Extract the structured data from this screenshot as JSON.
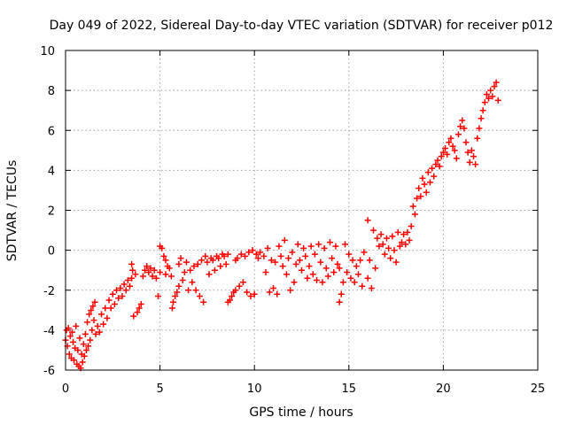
{
  "chart_data": {
    "type": "scatter",
    "title": "Day 049 of 2022, Sidereal Day-to-day VTEC variation (SDTVAR) for receiver p012",
    "xlabel": "GPS time / hours",
    "ylabel": "SDTVAR / TECUs",
    "xlim": [
      0,
      25
    ],
    "ylim": [
      -6,
      10
    ],
    "xticks": [
      0,
      5,
      10,
      15,
      20,
      25
    ],
    "yticks": [
      -6,
      -4,
      -2,
      0,
      2,
      4,
      6,
      8,
      10
    ],
    "xtick_labels": [
      "0",
      "5",
      "10",
      "15",
      "20",
      "25"
    ],
    "ytick_labels": [
      "-6",
      "-4",
      "-2",
      "0",
      "2",
      "4",
      "6",
      "8",
      "10"
    ],
    "grid": true,
    "marker": "+",
    "color": "#ff0000",
    "series": [
      {
        "name": "SDTVAR",
        "points": [
          [
            0.0,
            -4.5
          ],
          [
            0.05,
            -4.0
          ],
          [
            0.1,
            -4.8
          ],
          [
            0.15,
            -3.9
          ],
          [
            0.2,
            -5.2
          ],
          [
            0.25,
            -4.3
          ],
          [
            0.3,
            -5.4
          ],
          [
            0.35,
            -4.1
          ],
          [
            0.4,
            -4.6
          ],
          [
            0.45,
            -5.5
          ],
          [
            0.5,
            -4.9
          ],
          [
            0.55,
            -3.8
          ],
          [
            0.6,
            -5.7
          ],
          [
            0.65,
            -5.0
          ],
          [
            0.7,
            -5.8
          ],
          [
            0.75,
            -4.4
          ],
          [
            0.8,
            -5.9
          ],
          [
            0.85,
            -5.2
          ],
          [
            0.9,
            -5.6
          ],
          [
            0.95,
            -4.7
          ],
          [
            1.0,
            -5.3
          ],
          [
            1.05,
            -4.2
          ],
          [
            1.1,
            -5.0
          ],
          [
            1.15,
            -3.6
          ],
          [
            1.2,
            -4.8
          ],
          [
            1.25,
            -3.2
          ],
          [
            1.3,
            -4.5
          ],
          [
            1.35,
            -3.0
          ],
          [
            1.4,
            -4.0
          ],
          [
            1.45,
            -2.8
          ],
          [
            1.5,
            -3.5
          ],
          [
            1.55,
            -2.6
          ],
          [
            1.6,
            -4.2
          ],
          [
            1.7,
            -3.8
          ],
          [
            1.8,
            -4.1
          ],
          [
            1.9,
            -3.2
          ],
          [
            2.0,
            -3.7
          ],
          [
            2.1,
            -2.9
          ],
          [
            2.2,
            -3.4
          ],
          [
            2.3,
            -2.5
          ],
          [
            2.4,
            -2.9
          ],
          [
            2.5,
            -2.2
          ],
          [
            2.6,
            -2.7
          ],
          [
            2.7,
            -2.0
          ],
          [
            2.8,
            -2.4
          ],
          [
            2.9,
            -1.9
          ],
          [
            3.0,
            -2.3
          ],
          [
            3.1,
            -1.7
          ],
          [
            3.2,
            -2.0
          ],
          [
            3.3,
            -1.5
          ],
          [
            3.4,
            -1.8
          ],
          [
            3.5,
            -0.7
          ],
          [
            3.5,
            -1.4
          ],
          [
            3.55,
            -1.0
          ],
          [
            3.6,
            -3.3
          ],
          [
            3.7,
            -1.2
          ],
          [
            3.8,
            -3.1
          ],
          [
            3.9,
            -2.9
          ],
          [
            4.0,
            -2.7
          ],
          [
            4.1,
            -1.3
          ],
          [
            4.2,
            -1.0
          ],
          [
            4.3,
            -0.8
          ],
          [
            4.4,
            -1.1
          ],
          [
            4.5,
            -0.9
          ],
          [
            4.6,
            -1.3
          ],
          [
            4.7,
            -1.0
          ],
          [
            4.8,
            -1.4
          ],
          [
            4.9,
            -2.3
          ],
          [
            5.0,
            0.2
          ],
          [
            5.0,
            -1.1
          ],
          [
            5.1,
            0.1
          ],
          [
            5.2,
            -0.3
          ],
          [
            5.3,
            -0.5
          ],
          [
            5.3,
            -1.2
          ],
          [
            5.4,
            -0.8
          ],
          [
            5.5,
            -0.9
          ],
          [
            5.6,
            -1.3
          ],
          [
            5.65,
            -2.9
          ],
          [
            5.7,
            -2.6
          ],
          [
            5.8,
            -2.3
          ],
          [
            5.9,
            -2.1
          ],
          [
            6.0,
            -1.8
          ],
          [
            6.0,
            -0.7
          ],
          [
            6.1,
            -0.4
          ],
          [
            6.2,
            -1.5
          ],
          [
            6.3,
            -1.1
          ],
          [
            6.4,
            -0.6
          ],
          [
            6.5,
            -2.0
          ],
          [
            6.6,
            -1.0
          ],
          [
            6.7,
            -1.6
          ],
          [
            6.8,
            -0.8
          ],
          [
            6.9,
            -2.0
          ],
          [
            7.0,
            -0.7
          ],
          [
            7.1,
            -2.3
          ],
          [
            7.2,
            -0.5
          ],
          [
            7.3,
            -2.6
          ],
          [
            7.4,
            -0.3
          ],
          [
            7.5,
            -0.6
          ],
          [
            7.6,
            -1.2
          ],
          [
            7.7,
            -0.4
          ],
          [
            7.8,
            -0.5
          ],
          [
            7.9,
            -1.0
          ],
          [
            8.0,
            -0.3
          ],
          [
            8.1,
            -0.4
          ],
          [
            8.2,
            -0.8
          ],
          [
            8.3,
            -0.2
          ],
          [
            8.4,
            -0.3
          ],
          [
            8.5,
            -0.7
          ],
          [
            8.6,
            -0.2
          ],
          [
            8.6,
            -2.6
          ],
          [
            8.7,
            -2.5
          ],
          [
            8.8,
            -2.3
          ],
          [
            8.9,
            -2.1
          ],
          [
            9.0,
            -0.5
          ],
          [
            9.0,
            -2.0
          ],
          [
            9.1,
            -0.4
          ],
          [
            9.2,
            -1.8
          ],
          [
            9.3,
            -0.2
          ],
          [
            9.4,
            -1.6
          ],
          [
            9.5,
            -0.3
          ],
          [
            9.6,
            -2.1
          ],
          [
            9.7,
            -0.1
          ],
          [
            9.8,
            -2.3
          ],
          [
            9.9,
            0.0
          ],
          [
            10.0,
            -2.2
          ],
          [
            10.1,
            -0.2
          ],
          [
            10.2,
            -0.4
          ],
          [
            10.3,
            -0.1
          ],
          [
            10.5,
            -0.3
          ],
          [
            10.6,
            -1.1
          ],
          [
            10.7,
            0.1
          ],
          [
            10.8,
            -2.1
          ],
          [
            10.9,
            -0.5
          ],
          [
            11.0,
            -1.9
          ],
          [
            11.1,
            -0.6
          ],
          [
            11.2,
            -2.2
          ],
          [
            11.3,
            0.2
          ],
          [
            11.4,
            -0.3
          ],
          [
            11.5,
            -0.8
          ],
          [
            11.6,
            0.5
          ],
          [
            11.7,
            -1.2
          ],
          [
            11.8,
            -0.4
          ],
          [
            11.9,
            -2.0
          ],
          [
            12.0,
            -0.1
          ],
          [
            12.1,
            -1.6
          ],
          [
            12.2,
            -0.7
          ],
          [
            12.3,
            0.3
          ],
          [
            12.4,
            -0.5
          ],
          [
            12.5,
            -1.0
          ],
          [
            12.6,
            0.1
          ],
          [
            12.7,
            -0.3
          ],
          [
            12.8,
            -1.4
          ],
          [
            12.9,
            -0.8
          ],
          [
            13.0,
            0.2
          ],
          [
            13.1,
            -1.2
          ],
          [
            13.2,
            -0.2
          ],
          [
            13.3,
            -1.5
          ],
          [
            13.4,
            0.3
          ],
          [
            13.5,
            -0.6
          ],
          [
            13.6,
            -1.6
          ],
          [
            13.7,
            0.1
          ],
          [
            13.8,
            -0.9
          ],
          [
            13.9,
            -1.3
          ],
          [
            14.0,
            0.4
          ],
          [
            14.1,
            -0.4
          ],
          [
            14.2,
            -1.1
          ],
          [
            14.3,
            0.2
          ],
          [
            14.4,
            -0.7
          ],
          [
            14.5,
            -0.9
          ],
          [
            14.5,
            -2.6
          ],
          [
            14.6,
            -2.2
          ],
          [
            14.7,
            -1.6
          ],
          [
            14.8,
            0.3
          ],
          [
            14.9,
            -1.1
          ],
          [
            15.0,
            -0.2
          ],
          [
            15.1,
            -1.4
          ],
          [
            15.2,
            -0.5
          ],
          [
            15.3,
            -1.6
          ],
          [
            15.4,
            -0.8
          ],
          [
            15.5,
            -1.2
          ],
          [
            15.6,
            -0.5
          ],
          [
            15.7,
            -1.8
          ],
          [
            15.8,
            -0.1
          ],
          [
            16.0,
            1.5
          ],
          [
            16.0,
            -1.4
          ],
          [
            16.1,
            -0.5
          ],
          [
            16.2,
            -1.9
          ],
          [
            16.3,
            1.0
          ],
          [
            16.4,
            -0.9
          ],
          [
            16.5,
            0.6
          ],
          [
            16.6,
            0.2
          ],
          [
            16.7,
            0.8
          ],
          [
            16.8,
            0.3
          ],
          [
            16.9,
            -0.2
          ],
          [
            17.0,
            0.6
          ],
          [
            17.1,
            0.1
          ],
          [
            17.2,
            -0.4
          ],
          [
            17.3,
            0.7
          ],
          [
            17.4,
            0.0
          ],
          [
            17.5,
            -0.6
          ],
          [
            17.6,
            0.9
          ],
          [
            17.7,
            0.2
          ],
          [
            17.8,
            0.4
          ],
          [
            17.9,
            0.8
          ],
          [
            18.0,
            0.3
          ],
          [
            18.1,
            0.9
          ],
          [
            18.2,
            0.5
          ],
          [
            18.3,
            1.2
          ],
          [
            18.4,
            2.2
          ],
          [
            18.5,
            1.8
          ],
          [
            18.6,
            2.6
          ],
          [
            18.7,
            3.1
          ],
          [
            18.8,
            2.7
          ],
          [
            18.9,
            3.6
          ],
          [
            19.0,
            3.3
          ],
          [
            19.1,
            2.9
          ],
          [
            19.2,
            3.9
          ],
          [
            19.3,
            3.4
          ],
          [
            19.4,
            4.1
          ],
          [
            19.5,
            3.7
          ],
          [
            19.6,
            4.3
          ],
          [
            19.7,
            4.5
          ],
          [
            19.8,
            4.2
          ],
          [
            19.9,
            4.7
          ],
          [
            20.0,
            4.9
          ],
          [
            20.1,
            5.1
          ],
          [
            20.2,
            4.8
          ],
          [
            20.3,
            5.4
          ],
          [
            20.4,
            5.6
          ],
          [
            20.5,
            5.2
          ],
          [
            20.6,
            5.0
          ],
          [
            20.7,
            4.6
          ],
          [
            20.8,
            5.8
          ],
          [
            20.9,
            6.2
          ],
          [
            21.0,
            6.5
          ],
          [
            21.1,
            6.1
          ],
          [
            21.2,
            5.4
          ],
          [
            21.3,
            4.9
          ],
          [
            21.4,
            4.4
          ],
          [
            21.5,
            5.0
          ],
          [
            21.6,
            4.7
          ],
          [
            21.7,
            4.3
          ],
          [
            21.8,
            5.6
          ],
          [
            21.9,
            6.1
          ],
          [
            22.0,
            6.6
          ],
          [
            22.1,
            7.0
          ],
          [
            22.2,
            7.4
          ],
          [
            22.3,
            7.8
          ],
          [
            22.4,
            7.6
          ],
          [
            22.5,
            8.0
          ],
          [
            22.6,
            7.7
          ],
          [
            22.7,
            8.2
          ],
          [
            22.8,
            8.4
          ],
          [
            22.9,
            7.5
          ]
        ]
      }
    ]
  }
}
